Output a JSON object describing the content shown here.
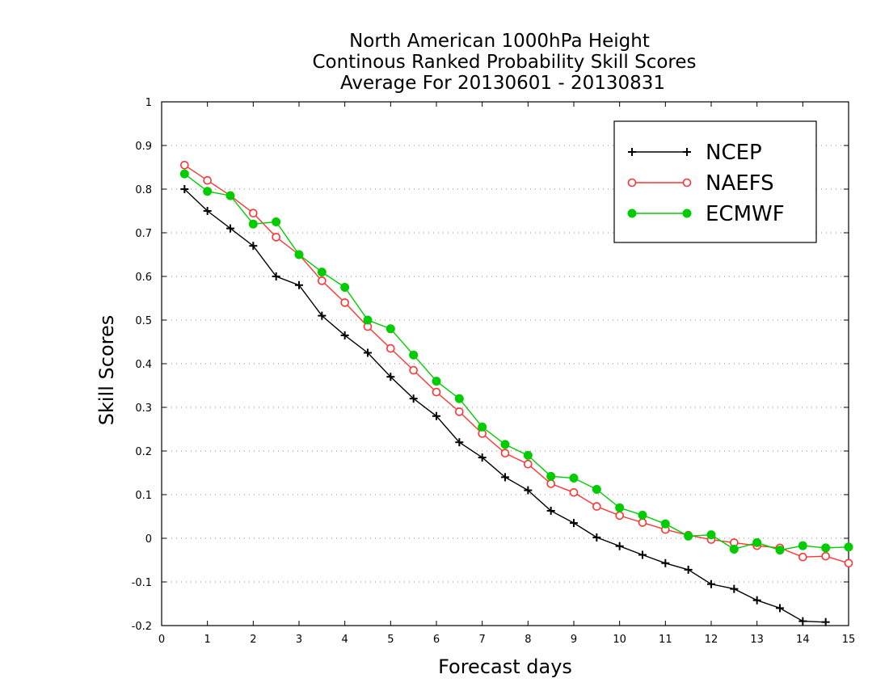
{
  "chart_data": {
    "type": "line",
    "title_lines": [
      "North American 1000hPa Height",
      "Continous Ranked Probability Skill Scores",
      "Average For 20130601 - 20130831"
    ],
    "xlabel": "Forecast days",
    "ylabel": "Skill Scores",
    "xlim": [
      0,
      15
    ],
    "ylim": [
      -0.2,
      1
    ],
    "xticks": [
      0,
      1,
      2,
      3,
      4,
      5,
      6,
      7,
      8,
      9,
      10,
      11,
      12,
      13,
      14,
      15
    ],
    "yticks": [
      -0.2,
      -0.1,
      0,
      0.1,
      0.2,
      0.3,
      0.4,
      0.5,
      0.6,
      0.7,
      0.8,
      0.9,
      1
    ],
    "ytick_labels": [
      "-0.2",
      "-0.1",
      "0",
      "0.1",
      "0.2",
      "0.3",
      "0.4",
      "0.5",
      "0.6",
      "0.7",
      "0.8",
      "0.9",
      "1"
    ],
    "grid": "horizontal dotted",
    "legend_position": "top-right",
    "series": [
      {
        "name": "NCEP",
        "color": "#000000",
        "marker": "plus",
        "x": [
          0.5,
          1,
          1.5,
          2,
          2.5,
          3,
          3.5,
          4,
          4.5,
          5,
          5.5,
          6,
          6.5,
          7,
          7.5,
          8,
          8.5,
          9,
          9.5,
          10,
          10.5,
          11,
          11.5,
          12,
          12.5,
          13,
          13.5,
          14,
          14.5
        ],
        "values": [
          0.8,
          0.75,
          0.71,
          0.67,
          0.6,
          0.58,
          0.51,
          0.465,
          0.425,
          0.37,
          0.32,
          0.28,
          0.22,
          0.185,
          0.14,
          0.11,
          0.063,
          0.035,
          0.002,
          -0.018,
          -0.038,
          -0.057,
          -0.072,
          -0.105,
          -0.116,
          -0.142,
          -0.16,
          -0.19,
          -0.192
        ]
      },
      {
        "name": "NAEFS",
        "color": "#ff3333",
        "marker": "open-circle",
        "x": [
          0.5,
          1,
          1.5,
          2,
          2.5,
          3,
          3.5,
          4,
          4.5,
          5,
          5.5,
          6,
          6.5,
          7,
          7.5,
          8,
          8.5,
          9,
          9.5,
          10,
          10.5,
          11,
          11.5,
          12,
          12.5,
          13,
          13.5,
          14,
          14.5,
          15
        ],
        "values": [
          0.855,
          0.82,
          0.785,
          0.745,
          0.69,
          0.65,
          0.59,
          0.54,
          0.485,
          0.435,
          0.385,
          0.335,
          0.29,
          0.24,
          0.195,
          0.17,
          0.125,
          0.105,
          0.073,
          0.052,
          0.036,
          0.02,
          0.007,
          -0.003,
          -0.01,
          -0.017,
          -0.022,
          -0.043,
          -0.041,
          -0.057
        ]
      },
      {
        "name": "ECMWF",
        "color": "#00cc00",
        "marker": "filled-circle",
        "x": [
          0.5,
          1,
          1.5,
          2,
          2.5,
          3,
          3.5,
          4,
          4.5,
          5,
          5.5,
          6,
          6.5,
          7,
          7.5,
          8,
          8.5,
          9,
          9.5,
          10,
          10.5,
          11,
          11.5,
          12,
          12.5,
          13,
          13.5,
          14,
          14.5,
          15
        ],
        "values": [
          0.835,
          0.795,
          0.785,
          0.72,
          0.725,
          0.65,
          0.61,
          0.575,
          0.5,
          0.48,
          0.42,
          0.36,
          0.32,
          0.255,
          0.215,
          0.19,
          0.142,
          0.138,
          0.112,
          0.07,
          0.053,
          0.033,
          0.005,
          0.008,
          -0.025,
          -0.01,
          -0.027,
          -0.017,
          -0.022,
          -0.02
        ]
      }
    ]
  }
}
